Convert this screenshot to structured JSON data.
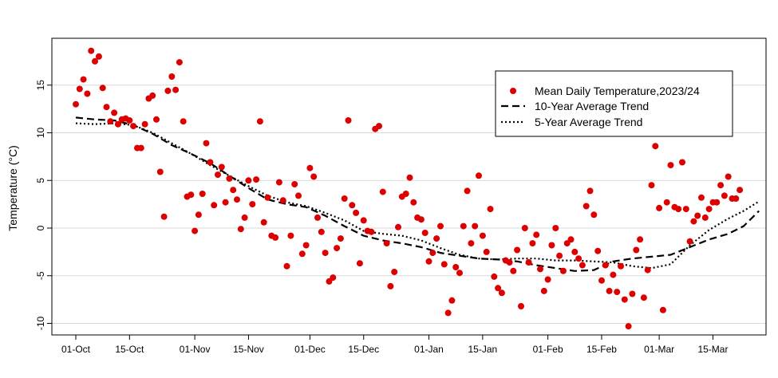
{
  "chart_data": {
    "type": "scatter",
    "title": "",
    "xlabel": "",
    "ylabel": "Temperature (°C)",
    "grid": "horizontal",
    "legend_position": "top-right",
    "xlim": [
      0,
      174
    ],
    "ylim": [
      -11,
      20
    ],
    "x_ticks": [
      {
        "x": 0,
        "label": "01-Oct"
      },
      {
        "x": 14,
        "label": "15-Oct"
      },
      {
        "x": 31,
        "label": "01-Nov"
      },
      {
        "x": 45,
        "label": "15-Nov"
      },
      {
        "x": 61,
        "label": "01-Dec"
      },
      {
        "x": 75,
        "label": "15-Dec"
      },
      {
        "x": 92,
        "label": "01-Jan"
      },
      {
        "x": 106,
        "label": "15-Jan"
      },
      {
        "x": 123,
        "label": "01-Feb"
      },
      {
        "x": 137,
        "label": "15-Feb"
      },
      {
        "x": 152,
        "label": "01-Mar"
      },
      {
        "x": 166,
        "label": "15-Mar"
      }
    ],
    "y_ticks": [
      -10,
      -5,
      0,
      5,
      10,
      15
    ],
    "colors": {
      "points": "#dd0000",
      "trend": "#000000",
      "grid": "#d9d9d9"
    },
    "series": [
      {
        "name": "Mean Daily Temperature,2023/24",
        "kind": "points",
        "points": [
          [
            0,
            13
          ],
          [
            1,
            14.6
          ],
          [
            2,
            15.6
          ],
          [
            3,
            14.1
          ],
          [
            4,
            18.6
          ],
          [
            5,
            17.5
          ],
          [
            6,
            18
          ],
          [
            7,
            14.7
          ],
          [
            8,
            12.7
          ],
          [
            9,
            11.2
          ],
          [
            10,
            12.1
          ],
          [
            11,
            10.9
          ],
          [
            12,
            11.4
          ],
          [
            13,
            11.5
          ],
          [
            14,
            11.3
          ],
          [
            15,
            10.7
          ],
          [
            16,
            8.4
          ],
          [
            17,
            8.4
          ],
          [
            18,
            10.9
          ],
          [
            19,
            13.6
          ],
          [
            20,
            13.9
          ],
          [
            21,
            11.4
          ],
          [
            22,
            5.9
          ],
          [
            23,
            1.2
          ],
          [
            24,
            14.4
          ],
          [
            25,
            15.9
          ],
          [
            26,
            14.5
          ],
          [
            27,
            17.4
          ],
          [
            28,
            11.2
          ],
          [
            29,
            3.3
          ],
          [
            30,
            3.5
          ],
          [
            31,
            -0.3
          ],
          [
            32,
            1.4
          ],
          [
            33,
            3.6
          ],
          [
            34,
            8.9
          ],
          [
            35,
            6.9
          ],
          [
            36,
            2.4
          ],
          [
            37,
            5.6
          ],
          [
            38,
            6.4
          ],
          [
            39,
            2.7
          ],
          [
            40,
            5.2
          ],
          [
            41,
            4
          ],
          [
            42,
            3
          ],
          [
            43,
            -0.1
          ],
          [
            44,
            1.1
          ],
          [
            45,
            5
          ],
          [
            46,
            2.5
          ],
          [
            47,
            5.1
          ],
          [
            48,
            11.2
          ],
          [
            49,
            0.6
          ],
          [
            50,
            3.2
          ],
          [
            51,
            -0.8
          ],
          [
            52,
            -1
          ],
          [
            53,
            4.8
          ],
          [
            54,
            2.9
          ],
          [
            55,
            -4
          ],
          [
            56,
            -0.8
          ],
          [
            57,
            4.6
          ],
          [
            58,
            3.4
          ],
          [
            59,
            -2.7
          ],
          [
            60,
            -1.8
          ],
          [
            61,
            6.3
          ],
          [
            62,
            5.4
          ],
          [
            63,
            1.1
          ],
          [
            64,
            -0.4
          ],
          [
            65,
            -2.6
          ],
          [
            66,
            -5.6
          ],
          [
            67,
            -5.2
          ],
          [
            68,
            -2.1
          ],
          [
            69,
            -1.1
          ],
          [
            70,
            3.1
          ],
          [
            71,
            11.3
          ],
          [
            72,
            2.4
          ],
          [
            73,
            1.6
          ],
          [
            74,
            -3.7
          ],
          [
            75,
            0.8
          ],
          [
            76,
            -0.3
          ],
          [
            77,
            -0.4
          ],
          [
            78,
            10.4
          ],
          [
            79,
            10.7
          ],
          [
            80,
            3.8
          ],
          [
            81,
            -1.6
          ],
          [
            82,
            -6.1
          ],
          [
            83,
            -4.6
          ],
          [
            84,
            0.1
          ],
          [
            85,
            3.3
          ],
          [
            86,
            3.6
          ],
          [
            87,
            5.3
          ],
          [
            88,
            2.7
          ],
          [
            89,
            1.1
          ],
          [
            90,
            0.9
          ],
          [
            91,
            -0.5
          ],
          [
            92,
            -3.5
          ],
          [
            93,
            -2.6
          ],
          [
            94,
            -1.1
          ],
          [
            95,
            0.2
          ],
          [
            96,
            -3.8
          ],
          [
            97,
            -8.9
          ],
          [
            98,
            -7.6
          ],
          [
            99,
            -4.1
          ],
          [
            100,
            -4.7
          ],
          [
            101,
            0.2
          ],
          [
            102,
            3.9
          ],
          [
            103,
            -1.6
          ],
          [
            104,
            0.2
          ],
          [
            105,
            5.5
          ],
          [
            106,
            -0.8
          ],
          [
            107,
            -2.5
          ],
          [
            108,
            2
          ],
          [
            109,
            -5.1
          ],
          [
            110,
            -6.3
          ],
          [
            111,
            -6.8
          ],
          [
            112,
            -3.4
          ],
          [
            113,
            -3.6
          ],
          [
            114,
            -4.5
          ],
          [
            115,
            -2.3
          ],
          [
            116,
            -8.2
          ],
          [
            117,
            0
          ],
          [
            118,
            -3.6
          ],
          [
            119,
            -1.6
          ],
          [
            120,
            -0.7
          ],
          [
            121,
            -4.3
          ],
          [
            122,
            -6.6
          ],
          [
            123,
            -5.4
          ],
          [
            124,
            -1.8
          ],
          [
            125,
            0
          ],
          [
            126,
            -2.9
          ],
          [
            127,
            -4.5
          ],
          [
            128,
            -1.6
          ],
          [
            129,
            -1.2
          ],
          [
            130,
            -2.5
          ],
          [
            131,
            -3.2
          ],
          [
            132,
            -3.9
          ],
          [
            133,
            2.3
          ],
          [
            134,
            3.9
          ],
          [
            135,
            1.4
          ],
          [
            136,
            -2.4
          ],
          [
            137,
            -5.5
          ],
          [
            138,
            -3.9
          ],
          [
            139,
            -6.6
          ],
          [
            140,
            -4.9
          ],
          [
            141,
            -6.7
          ],
          [
            142,
            -4
          ],
          [
            143,
            -7.5
          ],
          [
            144,
            -10.3
          ],
          [
            145,
            -6.9
          ],
          [
            146,
            -2.3
          ],
          [
            147,
            -1.2
          ],
          [
            148,
            -7.3
          ],
          [
            149,
            -4.4
          ],
          [
            150,
            4.5
          ],
          [
            151,
            8.6
          ],
          [
            152,
            2.1
          ],
          [
            153,
            -8.6
          ],
          [
            154,
            2.7
          ],
          [
            155,
            6.6
          ],
          [
            156,
            2.2
          ],
          [
            157,
            2
          ],
          [
            158,
            6.9
          ],
          [
            159,
            2
          ],
          [
            160,
            -1.4
          ],
          [
            161,
            0.7
          ],
          [
            162,
            1.3
          ],
          [
            163,
            3.2
          ],
          [
            164,
            1.1
          ],
          [
            165,
            2
          ],
          [
            166,
            2.7
          ],
          [
            167,
            2.7
          ],
          [
            168,
            4.5
          ],
          [
            169,
            3.4
          ],
          [
            170,
            5.4
          ],
          [
            171,
            3.1
          ],
          [
            172,
            3.1
          ],
          [
            173,
            4
          ]
        ]
      },
      {
        "name": "10-Year Average Trend",
        "kind": "dashed",
        "points": [
          [
            0,
            11.6
          ],
          [
            5,
            11.4
          ],
          [
            10,
            11.3
          ],
          [
            15,
            10.8
          ],
          [
            20,
            9.9
          ],
          [
            25,
            8.7
          ],
          [
            30,
            7.8
          ],
          [
            35,
            6.8
          ],
          [
            40,
            5.5
          ],
          [
            45,
            4.2
          ],
          [
            50,
            3
          ],
          [
            55,
            2.5
          ],
          [
            60,
            2.2
          ],
          [
            65,
            1.3
          ],
          [
            70,
            0.2
          ],
          [
            75,
            -0.8
          ],
          [
            80,
            -1.3
          ],
          [
            85,
            -1.6
          ],
          [
            90,
            -2
          ],
          [
            95,
            -2.6
          ],
          [
            100,
            -2.9
          ],
          [
            105,
            -3.2
          ],
          [
            110,
            -3.3
          ],
          [
            115,
            -3.5
          ],
          [
            120,
            -3.9
          ],
          [
            125,
            -4.2
          ],
          [
            130,
            -4.5
          ],
          [
            135,
            -4.4
          ],
          [
            140,
            -3.5
          ],
          [
            145,
            -3.2
          ],
          [
            150,
            -3
          ],
          [
            155,
            -2.8
          ],
          [
            160,
            -2
          ],
          [
            165,
            -1.2
          ],
          [
            170,
            -0.6
          ],
          [
            174,
            0.2
          ],
          [
            178,
            1.8
          ]
        ]
      },
      {
        "name": "5-Year Average Trend",
        "kind": "dotted",
        "points": [
          [
            0,
            11
          ],
          [
            5,
            10.9
          ],
          [
            10,
            11
          ],
          [
            15,
            10.8
          ],
          [
            20,
            10
          ],
          [
            25,
            8.9
          ],
          [
            30,
            7.8
          ],
          [
            35,
            6.6
          ],
          [
            40,
            5.5
          ],
          [
            45,
            4.4
          ],
          [
            50,
            3.4
          ],
          [
            55,
            2.7
          ],
          [
            60,
            2.3
          ],
          [
            65,
            1.6
          ],
          [
            70,
            0.8
          ],
          [
            75,
            -0.3
          ],
          [
            80,
            -0.6
          ],
          [
            85,
            -0.8
          ],
          [
            90,
            -1.3
          ],
          [
            95,
            -2.1
          ],
          [
            100,
            -2.8
          ],
          [
            105,
            -3.2
          ],
          [
            110,
            -3.3
          ],
          [
            115,
            -3.2
          ],
          [
            120,
            -3.2
          ],
          [
            125,
            -3.4
          ],
          [
            130,
            -3.4
          ],
          [
            135,
            -3.5
          ],
          [
            140,
            -3.6
          ],
          [
            145,
            -4
          ],
          [
            150,
            -4.2
          ],
          [
            155,
            -3.8
          ],
          [
            160,
            -1.8
          ],
          [
            165,
            -0.2
          ],
          [
            170,
            1
          ],
          [
            174,
            1.8
          ],
          [
            178,
            2.8
          ]
        ]
      }
    ]
  }
}
